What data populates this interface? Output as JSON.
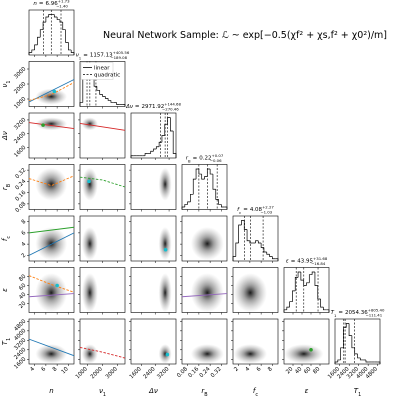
{
  "chart_data": {
    "type": "corner",
    "title": "Neural Network Sample: ℒ ~ exp[−0.5(χf² + χs,f² + χ0²)/m]",
    "equals_sign": "=",
    "legend": [
      {
        "name": "linear",
        "dash": false
      },
      {
        "name": "quadratic",
        "dash": true
      }
    ],
    "params": [
      {
        "label": {
          "main": "n"
        },
        "lim": [
          3,
          11
        ],
        "ticks": [
          4,
          6,
          8,
          10
        ],
        "median": 6.96,
        "upper": {
          "value": 1.73,
          "label": "+1.73"
        },
        "lower": {
          "value": 1.4,
          "label": "−1.40"
        },
        "counts": [
          1,
          2,
          4,
          7,
          10,
          13,
          15,
          16,
          16,
          15,
          14,
          13,
          10,
          5,
          2,
          1
        ]
      },
      {
        "label": {
          "main": "ν",
          "sub": "1"
        },
        "lim": [
          500,
          3500
        ],
        "ticks": [
          1000,
          2000,
          3000
        ],
        "median": 1157.13,
        "upper": {
          "value": 405.56,
          "label": "+405.56"
        },
        "lower": {
          "value": 189.08,
          "label": "−189.08"
        },
        "counts": [
          2,
          16,
          20,
          19,
          14,
          10,
          8,
          6,
          5,
          4,
          3,
          2,
          2,
          1,
          1,
          1
        ]
      },
      {
        "label": {
          "main": "Δν"
        },
        "lim": [
          1000,
          3600
        ],
        "ticks": [
          1600,
          2400,
          3200
        ],
        "median": 2971.92,
        "upper": {
          "value": 144.68,
          "label": "+144.68"
        },
        "lower": {
          "value": 270.46,
          "label": "−270.46"
        },
        "counts": [
          1,
          1,
          1,
          1,
          1,
          2,
          2,
          3,
          4,
          5,
          7,
          10,
          15,
          18,
          12,
          2
        ]
      },
      {
        "label": {
          "main": "r",
          "sub": "B"
        },
        "lim": [
          0.04,
          0.36
        ],
        "ticks": [
          0.08,
          0.16,
          0.24,
          0.32
        ],
        "median": 0.22,
        "upper": {
          "value": 0.07,
          "label": "+0.07"
        },
        "lower": {
          "value": 0.06,
          "label": "−0.06"
        },
        "counts": [
          1,
          2,
          3,
          6,
          12,
          16,
          14,
          12,
          13,
          16,
          14,
          8,
          4,
          2,
          1,
          1
        ]
      },
      {
        "label": {
          "main": "f",
          "sub": "c"
        },
        "lim": [
          1,
          9
        ],
        "ticks": [
          2,
          4,
          6,
          8
        ],
        "median": 4.08,
        "upper": {
          "value": 2.27,
          "label": "+2.27"
        },
        "lower": {
          "value": 1.03,
          "label": "−1.03"
        },
        "counts": [
          2,
          8,
          16,
          18,
          14,
          9,
          8,
          8,
          9,
          8,
          6,
          4,
          3,
          2,
          1,
          1
        ]
      },
      {
        "label": {
          "main": "ε"
        },
        "lim": [
          0,
          100
        ],
        "ticks": [
          20,
          40,
          60,
          80
        ],
        "median": 43.95,
        "upper": {
          "value": 31.68,
          "label": "+31.68"
        },
        "lower": {
          "value": 16.84,
          "label": "−16.84"
        },
        "counts": [
          1,
          2,
          4,
          8,
          13,
          15,
          12,
          10,
          11,
          14,
          15,
          10,
          5,
          2,
          1,
          1
        ]
      },
      {
        "label": {
          "main": "T",
          "sub": "1"
        },
        "lim": [
          1200,
          5000
        ],
        "ticks": [
          1600,
          2400,
          3200,
          4000,
          4800
        ],
        "median": 2054.36,
        "upper": {
          "value": 805.4,
          "label": "+805.40"
        },
        "lower": {
          "value": 111.41,
          "label": "−111.41"
        },
        "counts": [
          1,
          2,
          8,
          18,
          20,
          14,
          8,
          5,
          3,
          2,
          2,
          1,
          1,
          1,
          1,
          1
        ]
      }
    ],
    "fits": [
      {
        "col": 0,
        "row": 1,
        "style": 0,
        "color": "#1f77b4",
        "x": [
          3,
          11
        ],
        "y": [
          800,
          2300
        ]
      },
      {
        "col": 0,
        "row": 1,
        "style": 1,
        "color": "#ff7f0e",
        "x": [
          3,
          7,
          11
        ],
        "y": [
          900,
          1300,
          2100
        ]
      },
      {
        "col": 0,
        "row": 2,
        "style": 0,
        "color": "#d62728",
        "x": [
          3,
          11
        ],
        "y": [
          3050,
          2700
        ]
      },
      {
        "col": 1,
        "row": 2,
        "style": 0,
        "color": "#d62728",
        "x": [
          500,
          3500
        ],
        "y": [
          3000,
          2600
        ]
      },
      {
        "col": 0,
        "row": 3,
        "style": 1,
        "color": "#ff7f0e",
        "x": [
          3,
          7,
          11
        ],
        "y": [
          0.26,
          0.21,
          0.28
        ]
      },
      {
        "col": 1,
        "row": 3,
        "style": 1,
        "color": "#2ca02c",
        "x": [
          500,
          2000,
          3500
        ],
        "y": [
          0.27,
          0.25,
          0.2
        ]
      },
      {
        "col": 0,
        "row": 4,
        "style": 0,
        "color": "#2ca02c",
        "x": [
          3,
          11
        ],
        "y": [
          6,
          7
        ]
      },
      {
        "col": 0,
        "row": 4,
        "style": 0,
        "color": "#1f77b4",
        "x": [
          3,
          11
        ],
        "y": [
          2,
          6
        ]
      },
      {
        "col": 0,
        "row": 5,
        "style": 1,
        "color": "#ff7f0e",
        "x": [
          3,
          7,
          11
        ],
        "y": [
          82,
          62,
          45
        ]
      },
      {
        "col": 0,
        "row": 5,
        "style": 0,
        "color": "#9467bd",
        "x": [
          3,
          11
        ],
        "y": [
          35,
          42
        ]
      },
      {
        "col": 3,
        "row": 5,
        "style": 0,
        "color": "#9467bd",
        "x": [
          0.04,
          0.36
        ],
        "y": [
          35,
          42
        ]
      },
      {
        "col": 0,
        "row": 6,
        "style": 0,
        "color": "#1f77b4",
        "x": [
          3,
          11
        ],
        "y": [
          3300,
          1900
        ]
      },
      {
        "col": 1,
        "row": 6,
        "style": 1,
        "color": "#d62728",
        "x": [
          500,
          2000,
          3500
        ],
        "y": [
          2600,
          2200,
          1700
        ]
      }
    ],
    "points": [
      {
        "col": 0,
        "row": 1,
        "x": 7.5,
        "y": 1500,
        "color": "#17becf"
      },
      {
        "col": 0,
        "row": 2,
        "x": 5.5,
        "y": 2900,
        "color": "#2ca02c"
      },
      {
        "col": 1,
        "row": 3,
        "x": 1100,
        "y": 0.24,
        "color": "#17becf"
      },
      {
        "col": 2,
        "row": 4,
        "x": 3000,
        "y": 3,
        "color": "#17becf"
      },
      {
        "col": 0,
        "row": 5,
        "x": 8,
        "y": 60,
        "color": "#17becf"
      },
      {
        "col": 2,
        "row": 6,
        "x": 3100,
        "y": 2000,
        "color": "#17becf"
      },
      {
        "col": 5,
        "row": 6,
        "x": 60,
        "y": 2400,
        "color": "#2ca02c"
      }
    ]
  }
}
